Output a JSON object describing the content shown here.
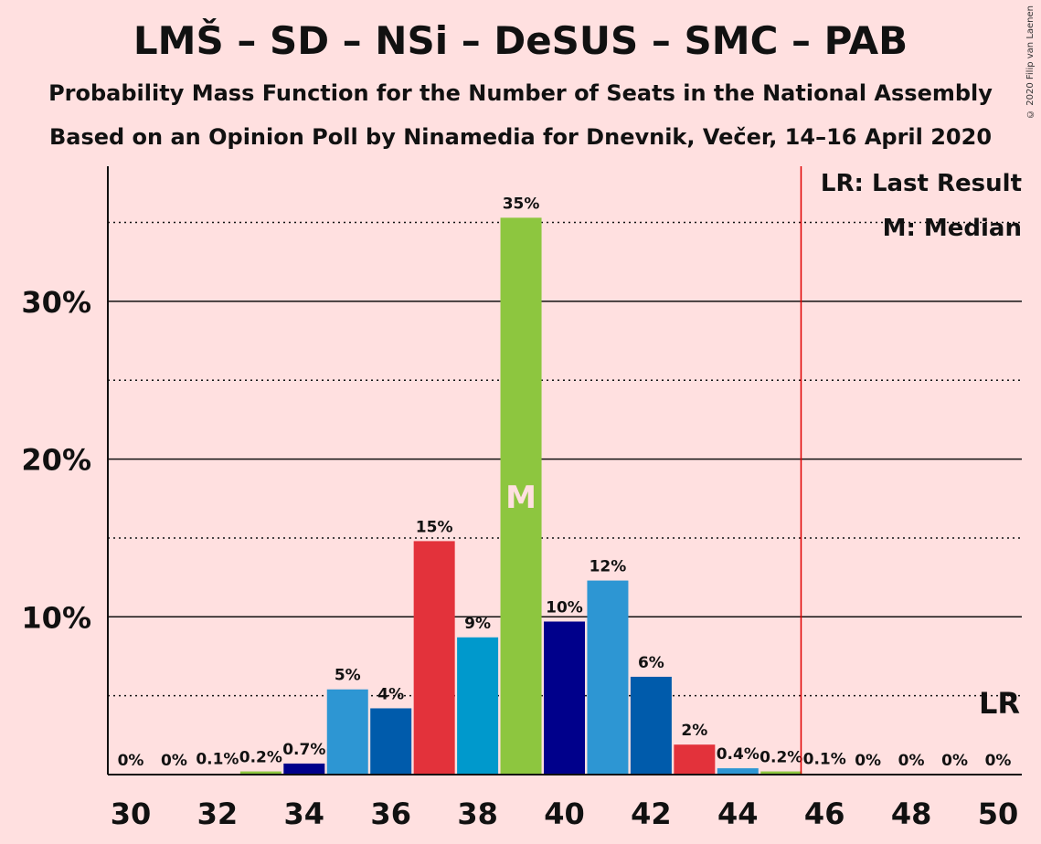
{
  "chart_data": {
    "type": "bar",
    "title": "LMŠ – SD – NSi – DeSUS – SMC – PAB",
    "subtitle_1": "Probability Mass Function for the Number of Seats in the National Assembly",
    "subtitle_2": "Based on an Opinion Poll by Ninamedia for Dnevnik, Večer, 14–16 April 2020",
    "copyright": "© 2020 Filip van Laenen",
    "x": [
      30,
      31,
      32,
      33,
      34,
      35,
      36,
      37,
      38,
      39,
      40,
      41,
      42,
      43,
      44,
      45,
      46,
      47,
      48,
      49,
      50
    ],
    "values": [
      0,
      0,
      0.1,
      0.2,
      0.7,
      5.4,
      4.2,
      14.8,
      8.7,
      35.3,
      9.7,
      12.3,
      6.2,
      1.9,
      0.4,
      0.2,
      0.1,
      0,
      0,
      0,
      0
    ],
    "labels": [
      "0%",
      "0%",
      "0.1%",
      "0.2%",
      "0.7%",
      "5%",
      "4%",
      "15%",
      "9%",
      "35%",
      "10%",
      "12%",
      "6%",
      "2%",
      "0.4%",
      "0.2%",
      "0.1%",
      "0%",
      "0%",
      "0%",
      "0%"
    ],
    "colors": [
      "#2d96d3",
      "#005bab",
      "#e3323b",
      "#0099cc",
      "#8dc63f",
      "#00008b"
    ],
    "bar_colors": [
      null,
      null,
      null,
      "#8dc63f",
      "#00008b",
      "#2d96d3",
      "#005bab",
      "#e3323b",
      "#0099cc",
      "#8dc63f",
      "#00008b",
      "#2d96d3",
      "#005bab",
      "#e3323b",
      "#2d96d3",
      "#8dc63f",
      null,
      null,
      null,
      null,
      null
    ],
    "x_ticks": [
      "30",
      "32",
      "34",
      "36",
      "38",
      "40",
      "42",
      "44",
      "46",
      "48",
      "50"
    ],
    "y_ticks": [
      "10%",
      "20%",
      "30%"
    ],
    "ylim": [
      0,
      38.5
    ],
    "median_seat": 39,
    "median_marker": "M",
    "last_result_line": 45.5,
    "last_result_marker": "LR",
    "legend": [
      "LR: Last Result",
      "M: Median"
    ]
  }
}
